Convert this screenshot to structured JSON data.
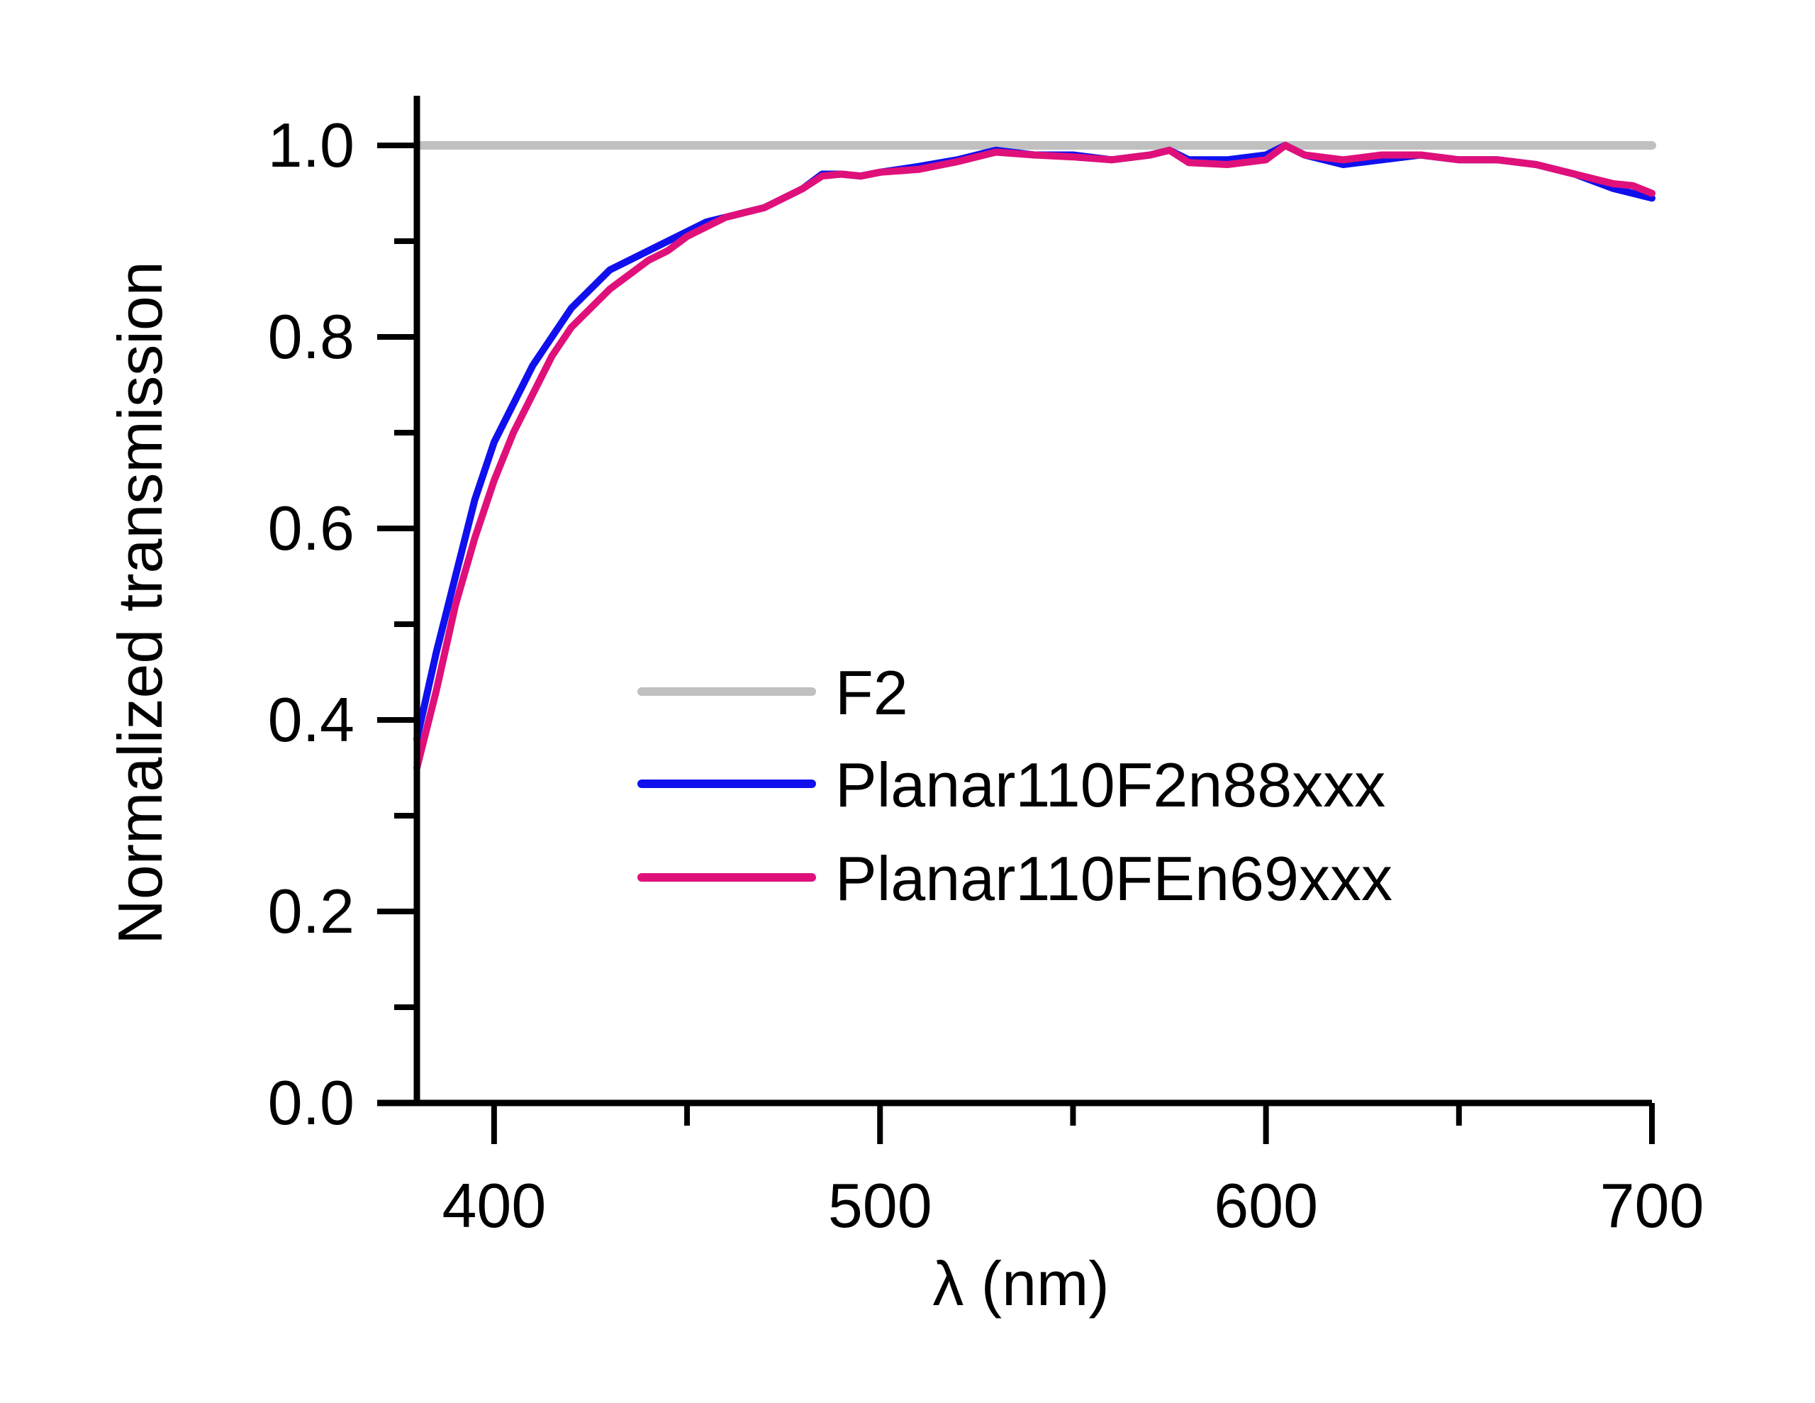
{
  "chart_data": {
    "type": "line",
    "title": "",
    "xlabel": "λ (nm)",
    "ylabel": "Normalized transmission",
    "xlim": [
      380,
      700
    ],
    "ylim": [
      0.0,
      1.05
    ],
    "x_ticks": [
      400,
      500,
      600,
      700
    ],
    "y_ticks": [
      0.0,
      0.2,
      0.4,
      0.6,
      0.8,
      1.0
    ],
    "y_tick_labels": [
      "0.0",
      "0.2",
      "0.4",
      "0.6",
      "0.8",
      "1.0"
    ],
    "grid": false,
    "legend_position": "center-right",
    "series": [
      {
        "name": "F2",
        "color": "#c0c0c0",
        "x": [
          380,
          700
        ],
        "y": [
          1.0,
          1.0
        ]
      },
      {
        "name": "Planar110F2n88xxx",
        "color": "#1010ee",
        "x": [
          380,
          385,
          390,
          395,
          400,
          405,
          410,
          415,
          420,
          425,
          430,
          435,
          440,
          445,
          450,
          455,
          460,
          465,
          470,
          475,
          480,
          485,
          490,
          495,
          500,
          510,
          520,
          530,
          540,
          550,
          560,
          570,
          575,
          580,
          590,
          600,
          605,
          610,
          620,
          630,
          640,
          650,
          660,
          670,
          680,
          690,
          695,
          700
        ],
        "y": [
          0.38,
          0.47,
          0.55,
          0.63,
          0.69,
          0.73,
          0.77,
          0.8,
          0.83,
          0.85,
          0.87,
          0.88,
          0.89,
          0.9,
          0.91,
          0.92,
          0.925,
          0.93,
          0.935,
          0.945,
          0.955,
          0.97,
          0.97,
          0.968,
          0.972,
          0.978,
          0.985,
          0.995,
          0.99,
          0.99,
          0.985,
          0.99,
          0.995,
          0.985,
          0.985,
          0.99,
          1.0,
          0.99,
          0.98,
          0.985,
          0.99,
          0.985,
          0.985,
          0.98,
          0.97,
          0.955,
          0.95,
          0.945
        ]
      },
      {
        "name": "Planar110FEn69xxx",
        "color": "#e0107a",
        "x": [
          380,
          385,
          390,
          395,
          400,
          405,
          410,
          415,
          420,
          425,
          430,
          435,
          440,
          445,
          450,
          455,
          460,
          465,
          470,
          475,
          480,
          485,
          490,
          495,
          500,
          510,
          520,
          530,
          540,
          550,
          560,
          570,
          575,
          580,
          590,
          600,
          605,
          610,
          620,
          630,
          640,
          650,
          660,
          670,
          680,
          690,
          695,
          700
        ],
        "y": [
          0.35,
          0.43,
          0.52,
          0.59,
          0.65,
          0.7,
          0.74,
          0.78,
          0.81,
          0.83,
          0.85,
          0.865,
          0.88,
          0.89,
          0.905,
          0.915,
          0.925,
          0.93,
          0.935,
          0.945,
          0.955,
          0.968,
          0.97,
          0.968,
          0.972,
          0.975,
          0.983,
          0.993,
          0.99,
          0.988,
          0.985,
          0.99,
          0.995,
          0.982,
          0.98,
          0.985,
          1.0,
          0.99,
          0.985,
          0.99,
          0.99,
          0.985,
          0.985,
          0.98,
          0.97,
          0.96,
          0.958,
          0.95
        ]
      }
    ]
  }
}
